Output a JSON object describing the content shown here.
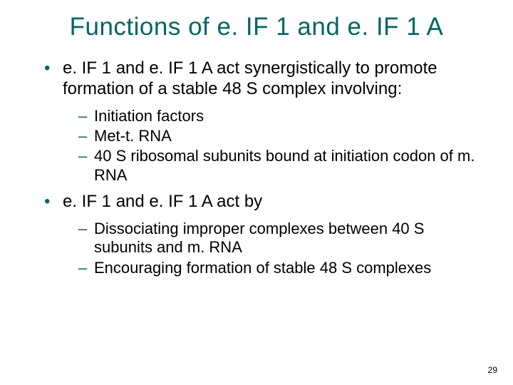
{
  "colors": {
    "accent": "#006666",
    "text": "#000000",
    "background": "#ffffff"
  },
  "typography": {
    "title_fontsize": 35,
    "level1_fontsize": 24,
    "level2_fontsize": 22,
    "pagenum_fontsize": 12,
    "font_family": "Arial"
  },
  "title": "Functions of e. IF 1 and e. IF 1 A",
  "bullets": [
    {
      "text": "e. IF 1 and e. IF 1 A act synergistically to promote formation of a stable 48 S complex involving:",
      "sub": [
        "Initiation factors",
        "Met-t. RNA",
        "40 S ribosomal subunits bound at initiation codon of m. RNA"
      ]
    },
    {
      "text": "e. IF 1 and e. IF 1 A act by",
      "sub": [
        "Dissociating improper complexes between 40 S subunits and m. RNA",
        "Encouraging formation of stable 48 S complexes"
      ]
    }
  ],
  "page_number": "29"
}
